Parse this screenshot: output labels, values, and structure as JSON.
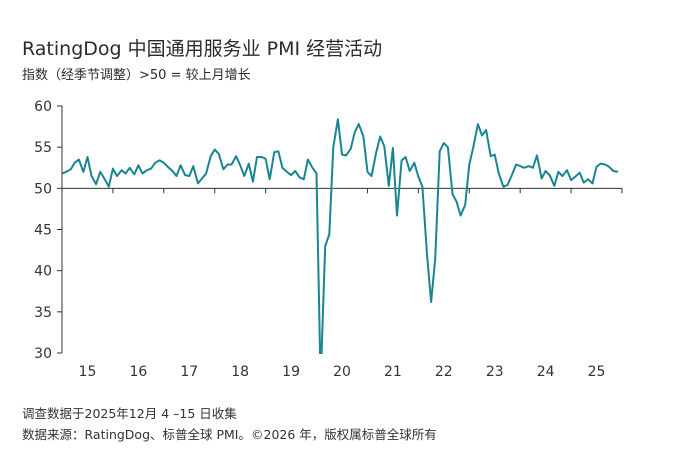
{
  "header": {
    "title": "RatingDog 中国通用服务业 PMI 经营活动",
    "subtitle": "指数（经季节调整）>50 = 较上月增长"
  },
  "footer": {
    "survey_note": "调查数据于2025年12月 4 –15 日收集",
    "source_note": "数据来源：RatingDog、标普全球 PMI。©2026 年，版权属标普全球所有"
  },
  "colors": {
    "series": "#1a8590",
    "axis": "#333333"
  },
  "chart_data": {
    "type": "line",
    "title": "RatingDog 中国通用服务业 PMI 经营活动",
    "xlabel": "",
    "ylabel": "",
    "ylim": [
      30,
      60
    ],
    "xlim": [
      2015.0,
      2026.0
    ],
    "yticks": [
      "60",
      "55",
      "50",
      "45",
      "40",
      "35",
      "30"
    ],
    "xticks": [
      "15",
      "16",
      "17",
      "18",
      "19",
      "20",
      "21",
      "22",
      "23",
      "24",
      "25"
    ],
    "grid": false,
    "reference_line": 50,
    "series": [
      {
        "x": [
          2015.0,
          2015.08,
          2015.17,
          2015.25,
          2015.33,
          2015.42,
          2015.5,
          2015.58,
          2015.67,
          2015.75,
          2015.83,
          2015.92,
          2016.0,
          2016.08,
          2016.17,
          2016.25,
          2016.33,
          2016.42,
          2016.5,
          2016.58,
          2016.67,
          2016.75,
          2016.83,
          2016.92,
          2017.0,
          2017.08,
          2017.17,
          2017.25,
          2017.33,
          2017.42,
          2017.5,
          2017.58,
          2017.67,
          2017.75,
          2017.83,
          2017.92,
          2018.0,
          2018.08,
          2018.17,
          2018.25,
          2018.33,
          2018.42,
          2018.5,
          2018.58,
          2018.67,
          2018.75,
          2018.83,
          2018.92,
          2019.0,
          2019.08,
          2019.17,
          2019.25,
          2019.33,
          2019.42,
          2019.5,
          2019.58,
          2019.67,
          2019.75,
          2019.83,
          2019.92,
          2020.0,
          2020.08,
          2020.17,
          2020.25,
          2020.33,
          2020.42,
          2020.5,
          2020.58,
          2020.67,
          2020.75,
          2020.83,
          2020.92,
          2021.0,
          2021.08,
          2021.17,
          2021.25,
          2021.33,
          2021.42,
          2021.5,
          2021.58,
          2021.67,
          2021.75,
          2021.83,
          2021.92,
          2022.0,
          2022.08,
          2022.17,
          2022.25,
          2022.33,
          2022.42,
          2022.5,
          2022.58,
          2022.67,
          2022.75,
          2022.83,
          2022.92,
          2023.0,
          2023.08,
          2023.17,
          2023.25,
          2023.33,
          2023.42,
          2023.5,
          2023.58,
          2023.67,
          2023.75,
          2023.83,
          2023.92,
          2024.0,
          2024.08,
          2024.17,
          2024.25,
          2024.33,
          2024.42,
          2024.5,
          2024.58,
          2024.67,
          2024.75,
          2024.83,
          2024.92,
          2025.0,
          2025.08,
          2025.17,
          2025.25,
          2025.33,
          2025.42,
          2025.5,
          2025.58,
          2025.67,
          2025.75,
          2025.83,
          2025.92
        ],
        "values": [
          51.8,
          52.0,
          52.3,
          53.1,
          53.5,
          52.0,
          53.8,
          51.5,
          50.5,
          52.0,
          51.2,
          50.2,
          52.4,
          51.5,
          52.2,
          51.8,
          52.5,
          51.7,
          52.8,
          51.8,
          52.2,
          52.4,
          53.1,
          53.4,
          53.1,
          52.6,
          52.1,
          51.5,
          52.8,
          51.6,
          51.5,
          52.7,
          50.6,
          51.2,
          51.8,
          53.9,
          54.7,
          54.2,
          52.3,
          52.9,
          52.9,
          53.9,
          52.8,
          51.5,
          53.0,
          50.8,
          53.8,
          53.8,
          53.6,
          51.1,
          54.4,
          54.5,
          52.5,
          52.0,
          51.6,
          52.1,
          51.3,
          51.1,
          53.5,
          52.5,
          51.8,
          26.5,
          43.0,
          44.4,
          55.0,
          58.4,
          54.1,
          54.0,
          54.8,
          56.8,
          57.8,
          56.3,
          52.0,
          51.5,
          54.3,
          56.3,
          55.1,
          50.3,
          54.9,
          46.7,
          53.4,
          53.8,
          52.1,
          53.1,
          51.4,
          50.2,
          42.0,
          36.2,
          41.4,
          54.5,
          55.5,
          55.0,
          49.3,
          48.4,
          46.7,
          48.0,
          52.9,
          55.0,
          57.8,
          56.4,
          57.1,
          53.9,
          54.1,
          51.8,
          50.2,
          50.4,
          51.5,
          52.9,
          52.7,
          52.5,
          52.7,
          52.5,
          54.0,
          51.2,
          52.1,
          51.6,
          50.3,
          52.0,
          51.5,
          52.2,
          51.0,
          51.4,
          51.9,
          50.7,
          51.1,
          50.6,
          52.6,
          53.0,
          52.9,
          52.6,
          52.1,
          52.0
        ]
      }
    ]
  }
}
